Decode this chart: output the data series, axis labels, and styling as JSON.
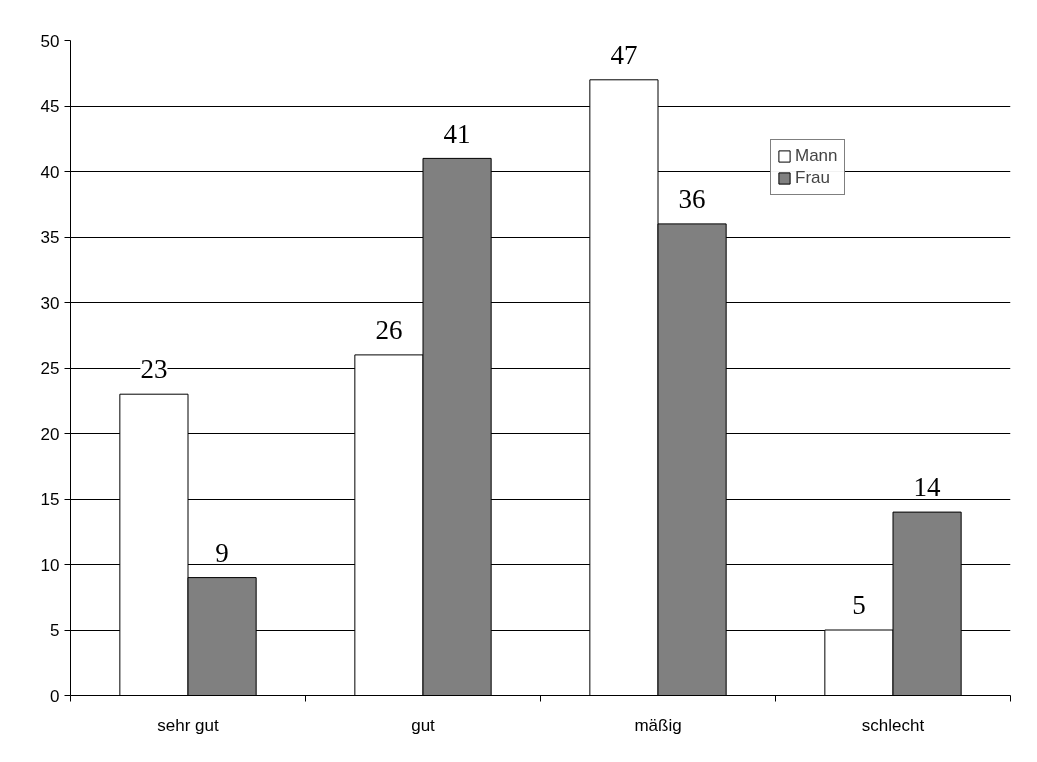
{
  "chart_data": {
    "type": "bar",
    "categories": [
      "sehr gut",
      "gut",
      "mäßig",
      "schlecht"
    ],
    "series": [
      {
        "name": "Mann",
        "color": "#ffffff",
        "values": [
          23,
          26,
          47,
          5
        ]
      },
      {
        "name": "Frau",
        "color": "#808080",
        "values": [
          9,
          41,
          36,
          14
        ]
      }
    ],
    "ylim": [
      0,
      50
    ],
    "yticks": [
      0,
      5,
      10,
      15,
      20,
      25,
      30,
      35,
      40,
      45,
      50
    ],
    "grid": "y",
    "legend": "top right",
    "data_labels": true
  }
}
